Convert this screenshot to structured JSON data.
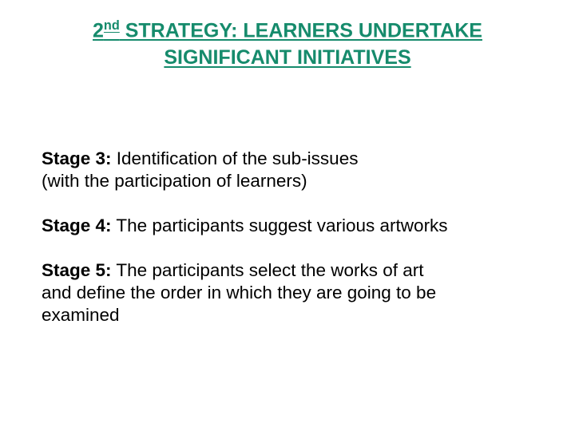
{
  "title": {
    "prefix": "2",
    "ordinal": "nd",
    "line1_rest": " STRATEGY: LEARNERS UNDERTAKE",
    "line2": "SIGNIFICANT INITIATIVES",
    "color": "#168b6c",
    "fontsize": 25,
    "font_weight": 700
  },
  "stages": [
    {
      "label": "Stage 3:",
      "text_lines": [
        " Identification of the sub-issues",
        "(with the participation of learners)"
      ]
    },
    {
      "label": "Stage 4:",
      "text_lines": [
        " The participants suggest various artworks"
      ]
    },
    {
      "label": "Stage 5:",
      "text_lines": [
        " The participants select the works of art",
        "and define the order in which they are going to be",
        "examined"
      ]
    }
  ],
  "body_style": {
    "color": "#000000",
    "fontsize": 22.5,
    "label_weight": 700,
    "text_weight": 400
  },
  "background_color": "#ffffff"
}
